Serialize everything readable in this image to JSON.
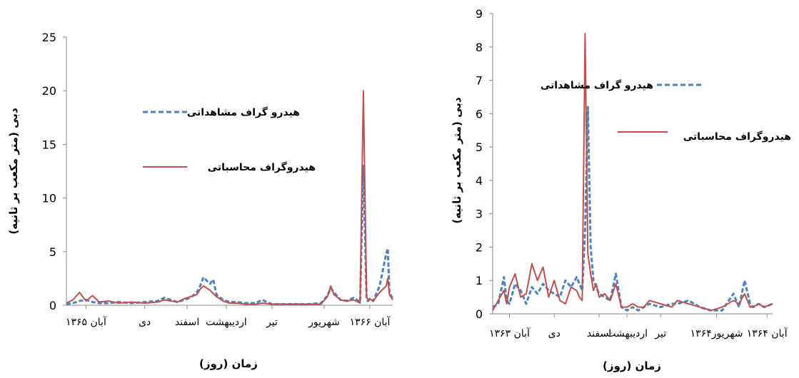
{
  "chart_data": [
    {
      "type": "line",
      "xlabel": "زمان (روز)",
      "ylabel": "دبی (متر مکعب بر ثانیه)",
      "ylim": [
        0,
        25
      ],
      "yticks": [
        "0",
        "5",
        "10",
        "15",
        "20",
        "25"
      ],
      "xtick_labels": [
        "آبان ۱۳۶۵",
        "دی",
        "اسفند",
        "اردیبهشت",
        "تیر",
        "شهریور",
        "آبان ۱۳۶۶"
      ],
      "legend": [
        "هیدرو گراف مشاهداتی",
        "هیدروگراف محاسباتی"
      ],
      "grid": false,
      "series": [
        {
          "name": "هیدرو گراف مشاهداتی",
          "style": "dashed",
          "color": "#4f81bd",
          "x": [
            0.0,
            0.02,
            0.04,
            0.06,
            0.08,
            0.1,
            0.13,
            0.16,
            0.2,
            0.24,
            0.28,
            0.3,
            0.32,
            0.34,
            0.36,
            0.38,
            0.4,
            0.41,
            0.42,
            0.44,
            0.45,
            0.46,
            0.48,
            0.5,
            0.52,
            0.55,
            0.58,
            0.6,
            0.63,
            0.66,
            0.7,
            0.74,
            0.78,
            0.8,
            0.81,
            0.82,
            0.84,
            0.86,
            0.88,
            0.9,
            0.91,
            0.92,
            0.925,
            0.93,
            0.94,
            0.96,
            0.98,
            0.985,
            0.99,
            1.0
          ],
          "y": [
            0.1,
            0.2,
            0.4,
            0.5,
            0.3,
            0.2,
            0.2,
            0.3,
            0.2,
            0.3,
            0.4,
            0.7,
            0.5,
            0.3,
            0.5,
            0.7,
            1.2,
            1.8,
            2.6,
            2.0,
            2.4,
            1.0,
            0.5,
            0.3,
            0.3,
            0.2,
            0.2,
            0.5,
            0.1,
            0.1,
            0.1,
            0.1,
            0.2,
            0.9,
            1.6,
            1.2,
            0.5,
            0.4,
            0.7,
            0.3,
            13.0,
            0.5,
            0.4,
            0.6,
            0.4,
            1.8,
            4.8,
            5.3,
            1.2,
            0.6
          ]
        },
        {
          "name": "هیدروگراف محاسباتی",
          "style": "solid",
          "color": "#c0504d",
          "x": [
            0.0,
            0.02,
            0.04,
            0.06,
            0.08,
            0.1,
            0.13,
            0.16,
            0.2,
            0.24,
            0.28,
            0.3,
            0.32,
            0.34,
            0.36,
            0.38,
            0.4,
            0.41,
            0.42,
            0.44,
            0.45,
            0.46,
            0.48,
            0.5,
            0.52,
            0.55,
            0.58,
            0.6,
            0.63,
            0.66,
            0.7,
            0.74,
            0.78,
            0.8,
            0.81,
            0.82,
            0.84,
            0.86,
            0.88,
            0.9,
            0.91,
            0.92,
            0.925,
            0.93,
            0.94,
            0.96,
            0.98,
            0.985,
            0.99,
            1.0
          ],
          "y": [
            0.2,
            0.5,
            1.2,
            0.4,
            0.9,
            0.3,
            0.4,
            0.2,
            0.3,
            0.2,
            0.3,
            0.5,
            0.4,
            0.3,
            0.6,
            0.8,
            1.0,
            1.5,
            1.8,
            1.4,
            1.1,
            0.8,
            0.4,
            0.2,
            0.2,
            0.1,
            0.1,
            0.2,
            0.1,
            0.1,
            0.1,
            0.1,
            0.1,
            0.8,
            1.8,
            1.0,
            0.5,
            0.4,
            0.5,
            0.2,
            20.0,
            0.8,
            0.5,
            0.6,
            0.4,
            1.2,
            1.8,
            2.5,
            1.0,
            0.5
          ]
        }
      ]
    },
    {
      "type": "line",
      "xlabel": "زمان (روز)",
      "ylabel": "دبی (متر مکعب بر ثانیه)",
      "ylim": [
        0,
        9
      ],
      "yticks": [
        "0",
        "1",
        "2",
        "3",
        "4",
        "5",
        "6",
        "7",
        "8",
        "9"
      ],
      "xtick_labels": [
        "آبان ۱۳۶۳",
        "دی",
        "اسفند",
        "اردیبهشت",
        "تیر",
        "۱۳۶۴شهریور",
        "آبان ۱۳۶۴"
      ],
      "legend": [
        "هیدرو گراف مشاهداتی",
        "هیدروگراف محاسباتی"
      ],
      "grid": false,
      "series": [
        {
          "name": "هیدرو گراف مشاهداتی",
          "style": "dashed",
          "color": "#4f81bd",
          "x": [
            0.0,
            0.02,
            0.04,
            0.05,
            0.06,
            0.08,
            0.1,
            0.12,
            0.14,
            0.16,
            0.18,
            0.2,
            0.22,
            0.24,
            0.26,
            0.28,
            0.3,
            0.31,
            0.32,
            0.33,
            0.34,
            0.35,
            0.36,
            0.37,
            0.38,
            0.4,
            0.42,
            0.44,
            0.46,
            0.48,
            0.5,
            0.52,
            0.54,
            0.56,
            0.6,
            0.64,
            0.66,
            0.7,
            0.74,
            0.78,
            0.82,
            0.86,
            0.88,
            0.9,
            0.92,
            0.93,
            0.95,
            0.97,
            1.0
          ],
          "y": [
            0.2,
            0.3,
            1.1,
            0.4,
            0.3,
            0.9,
            0.7,
            0.3,
            0.8,
            0.6,
            0.9,
            0.7,
            0.6,
            0.5,
            1.0,
            0.8,
            1.1,
            0.9,
            0.7,
            2.5,
            6.2,
            2.0,
            1.0,
            0.8,
            0.6,
            0.5,
            0.4,
            1.2,
            0.2,
            0.1,
            0.2,
            0.1,
            0.2,
            0.3,
            0.2,
            0.3,
            0.3,
            0.4,
            0.2,
            0.1,
            0.1,
            0.6,
            0.2,
            1.0,
            0.3,
            0.2,
            0.3,
            0.2,
            0.3
          ]
        },
        {
          "name": "هیدروگراف محاسباتی",
          "style": "solid",
          "color": "#c0504d",
          "x": [
            0.0,
            0.02,
            0.04,
            0.05,
            0.06,
            0.08,
            0.1,
            0.12,
            0.14,
            0.16,
            0.18,
            0.2,
            0.22,
            0.24,
            0.26,
            0.28,
            0.3,
            0.31,
            0.32,
            0.33,
            0.34,
            0.35,
            0.36,
            0.37,
            0.38,
            0.4,
            0.42,
            0.44,
            0.46,
            0.48,
            0.5,
            0.52,
            0.54,
            0.56,
            0.6,
            0.64,
            0.66,
            0.7,
            0.74,
            0.78,
            0.82,
            0.86,
            0.88,
            0.9,
            0.92,
            0.93,
            0.95,
            0.97,
            1.0
          ],
          "y": [
            0.1,
            0.4,
            0.7,
            0.3,
            0.8,
            1.2,
            0.5,
            0.6,
            1.5,
            1.0,
            1.4,
            0.5,
            1.0,
            0.4,
            0.3,
            0.8,
            0.7,
            0.5,
            0.4,
            8.4,
            1.8,
            1.2,
            0.7,
            0.9,
            0.5,
            0.6,
            0.4,
            0.9,
            0.2,
            0.2,
            0.3,
            0.2,
            0.2,
            0.4,
            0.3,
            0.2,
            0.4,
            0.3,
            0.2,
            0.1,
            0.2,
            0.4,
            0.3,
            0.6,
            0.2,
            0.2,
            0.3,
            0.2,
            0.3
          ]
        }
      ]
    }
  ]
}
